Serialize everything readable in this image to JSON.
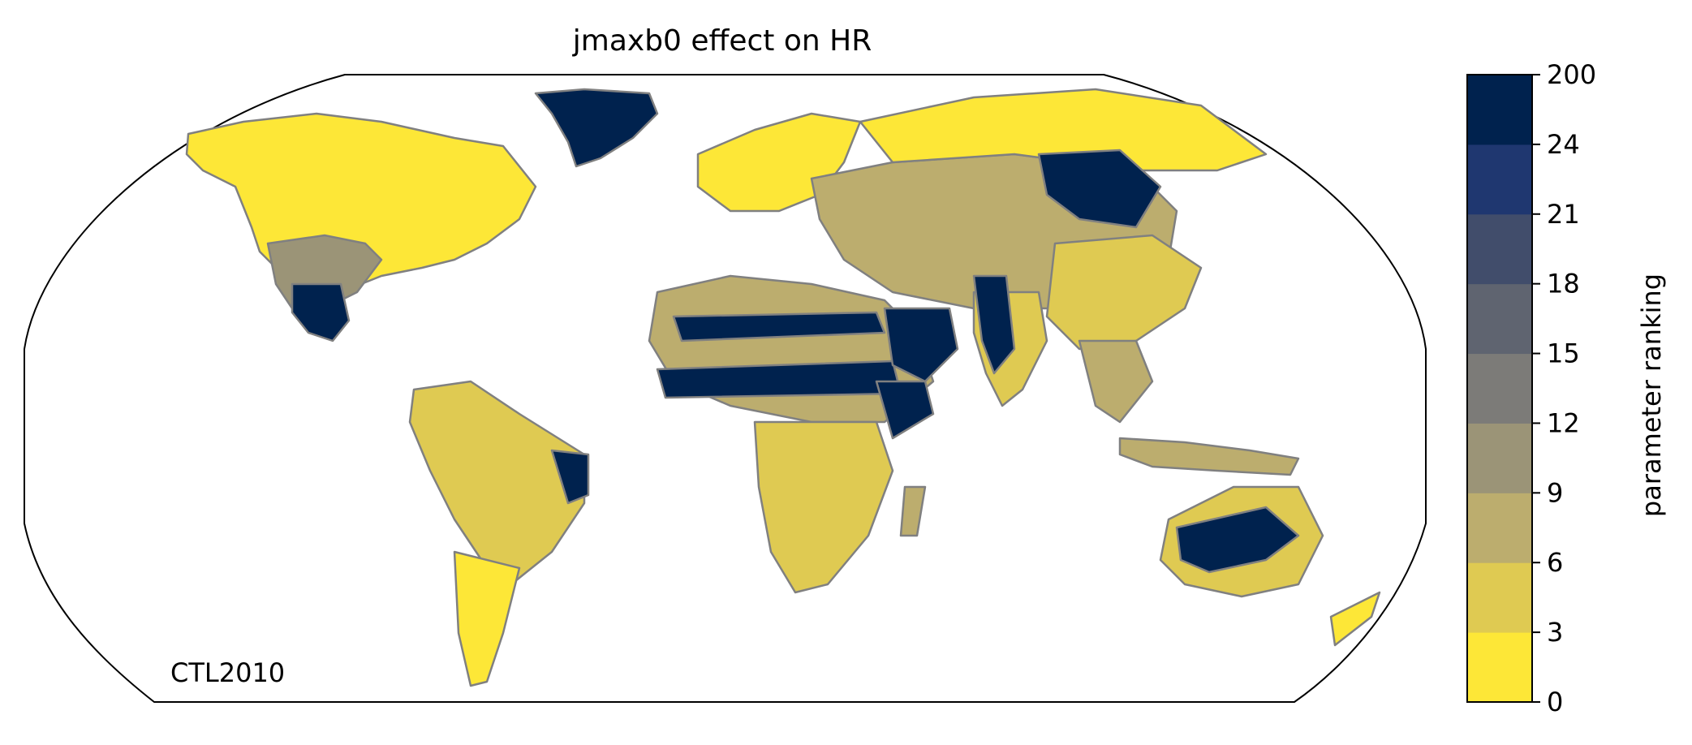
{
  "chart_data": {
    "type": "heatmap",
    "title": "jmaxb0 effect on HR",
    "annotation": "CTL2010",
    "projection": "Robinson",
    "colorbar": {
      "label": "parameter ranking",
      "ticks": [
        "0",
        "3",
        "6",
        "9",
        "12",
        "15",
        "18",
        "21",
        "24",
        "200"
      ],
      "bins": [
        {
          "range": [
            0,
            3
          ],
          "color": "#fde737"
        },
        {
          "range": [
            3,
            6
          ],
          "color": "#dfca52"
        },
        {
          "range": [
            6,
            9
          ],
          "color": "#bcad6e"
        },
        {
          "range": [
            9,
            12
          ],
          "color": "#9b9477"
        },
        {
          "range": [
            12,
            15
          ],
          "color": "#7c7b78"
        },
        {
          "range": [
            15,
            18
          ],
          "color": "#5f6470"
        },
        {
          "range": [
            18,
            21
          ],
          "color": "#414d6b"
        },
        {
          "range": [
            21,
            24
          ],
          "color": "#1f3770"
        },
        {
          "range": [
            24,
            200
          ],
          "color": "#00224e"
        }
      ]
    },
    "regions": [
      {
        "name": "north-america",
        "ranking_class": 0
      },
      {
        "name": "north-america-south",
        "ranking_class": 3
      },
      {
        "name": "greenland",
        "ranking_class": 8
      },
      {
        "name": "mexico",
        "ranking_class": 8
      },
      {
        "name": "south-america",
        "ranking_class": 1
      },
      {
        "name": "southern-cone",
        "ranking_class": 0
      },
      {
        "name": "brazil-east",
        "ranking_class": 8
      },
      {
        "name": "europe",
        "ranking_class": 0
      },
      {
        "name": "eurasia-central",
        "ranking_class": 2
      },
      {
        "name": "siberia",
        "ranking_class": 0
      },
      {
        "name": "central-siberia-hotspot",
        "ranking_class": 8
      },
      {
        "name": "north-africa",
        "ranking_class": 2
      },
      {
        "name": "sahara-band-north",
        "ranking_class": 8
      },
      {
        "name": "sahel-band",
        "ranking_class": 8
      },
      {
        "name": "arabia",
        "ranking_class": 8
      },
      {
        "name": "horn-of-africa",
        "ranking_class": 8
      },
      {
        "name": "southern-africa",
        "ranking_class": 1
      },
      {
        "name": "madagascar",
        "ranking_class": 2
      },
      {
        "name": "india",
        "ranking_class": 1
      },
      {
        "name": "india-west",
        "ranking_class": 8
      },
      {
        "name": "china",
        "ranking_class": 1
      },
      {
        "name": "southeast-asia",
        "ranking_class": 2
      },
      {
        "name": "indonesia",
        "ranking_class": 2
      },
      {
        "name": "australia",
        "ranking_class": 1
      },
      {
        "name": "australia-interior",
        "ranking_class": 8
      },
      {
        "name": "new-zealand",
        "ranking_class": 0
      }
    ]
  }
}
